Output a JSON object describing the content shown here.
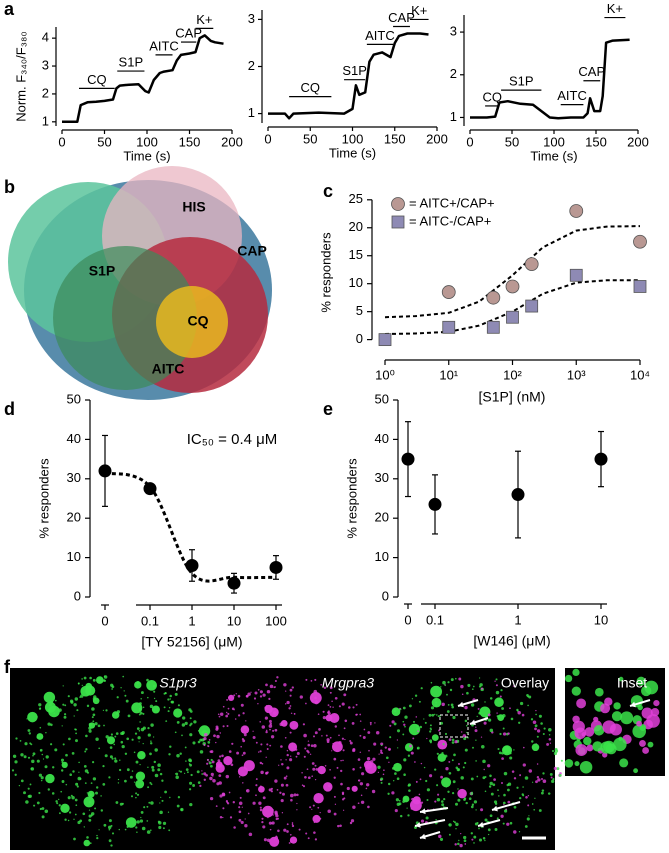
{
  "panel_labels": [
    "a",
    "b",
    "c",
    "d",
    "e",
    "f"
  ],
  "chart_data": [
    {
      "type": "line",
      "y_label": "Norm. F₃₄₀/F₃₈₀",
      "x_label": "Time (s)",
      "color": "#000000",
      "xlim": [
        0,
        200
      ],
      "xticks": [
        0,
        50,
        100,
        150,
        200
      ],
      "ylim": [
        0.85,
        4.4
      ],
      "yticks": [
        1,
        2,
        3,
        4
      ],
      "x": [
        0,
        10,
        18,
        22,
        30,
        40,
        50,
        60,
        64,
        68,
        75,
        90,
        98,
        102,
        108,
        115,
        120,
        130,
        135,
        140,
        150,
        157,
        162,
        168,
        175,
        180,
        190
      ],
      "values": [
        1,
        1,
        1,
        1.6,
        1.7,
        1.72,
        1.75,
        1.8,
        2.2,
        2.3,
        2.32,
        2.35,
        2.1,
        2.05,
        2.5,
        2.75,
        2.8,
        2.85,
        3.2,
        3.4,
        3.45,
        3.5,
        4.0,
        4.1,
        3.9,
        3.85,
        3.8
      ],
      "annotations": [
        {
          "label": "CQ",
          "x": [
            20,
            62
          ],
          "y": 2.2
        },
        {
          "label": "S1P",
          "x": [
            65,
            97
          ],
          "y": 2.82
        },
        {
          "label": "AITC",
          "x": [
            110,
            130
          ],
          "y": 3.4
        },
        {
          "label": "CAP",
          "x": [
            140,
            158
          ],
          "y": 3.86
        },
        {
          "label": "K+",
          "x": [
            157,
            178
          ],
          "y": 4.35
        }
      ]
    },
    {
      "type": "line",
      "x_label": "Time (s)",
      "color": "#000000",
      "xlim": [
        0,
        200
      ],
      "xticks": [
        0,
        50,
        100,
        150,
        200
      ],
      "ylim": [
        0.8,
        3.2
      ],
      "yticks": [
        1,
        2,
        3
      ],
      "x": [
        0,
        20,
        25,
        30,
        60,
        90,
        100,
        104,
        108,
        115,
        120,
        125,
        135,
        145,
        150,
        155,
        165,
        180,
        190
      ],
      "values": [
        1,
        1,
        0.9,
        1.0,
        1.02,
        1.0,
        1.1,
        1.6,
        1.4,
        1.45,
        2.1,
        2.25,
        2.3,
        2.2,
        2.5,
        2.65,
        2.7,
        2.7,
        2.68
      ],
      "annotations": [
        {
          "label": "CQ",
          "x": [
            25,
            75
          ],
          "y": 1.36
        },
        {
          "label": "S1P",
          "x": [
            90,
            115
          ],
          "y": 1.72
        },
        {
          "label": "AITC",
          "x": [
            117,
            148
          ],
          "y": 2.47
        },
        {
          "label": "CAP",
          "x": [
            148,
            168
          ],
          "y": 2.85
        },
        {
          "label": "K+",
          "x": [
            168,
            190
          ],
          "y": 3.0
        }
      ]
    },
    {
      "type": "line",
      "x_label": "Time (s)",
      "color": "#000000",
      "xlim": [
        0,
        200
      ],
      "xticks": [
        0,
        50,
        100,
        150,
        200
      ],
      "ylim": [
        0.8,
        3.4
      ],
      "yticks": [
        1,
        2,
        3
      ],
      "x": [
        0,
        20,
        30,
        35,
        45,
        60,
        75,
        85,
        95,
        105,
        120,
        135,
        140,
        143,
        148,
        155,
        158,
        162,
        170,
        190
      ],
      "values": [
        1,
        1,
        1.02,
        1.35,
        1.38,
        1.32,
        1.3,
        1.15,
        1.0,
        0.98,
        1.0,
        1.0,
        1.1,
        1.45,
        1.15,
        1.15,
        1.5,
        2.75,
        2.8,
        2.82
      ],
      "annotations": [
        {
          "label": "CQ",
          "x": [
            18,
            35
          ],
          "y": 1.27
        },
        {
          "label": "S1P",
          "x": [
            37,
            85
          ],
          "y": 1.64
        },
        {
          "label": "AITC",
          "x": [
            108,
            135
          ],
          "y": 1.3
        },
        {
          "label": "CAP",
          "x": [
            135,
            155
          ],
          "y": 1.86
        },
        {
          "label": "K+",
          "x": [
            160,
            185
          ],
          "y": 3.34
        }
      ]
    },
    {
      "type": "scatter",
      "x_label": "[S1P] (nM)",
      "y_label": "% responders",
      "xlog": true,
      "xlim": [
        1,
        10000
      ],
      "xticks": [
        {
          "value": 1,
          "label": "10⁰"
        },
        {
          "value": 10,
          "label": "10¹"
        },
        {
          "value": 100,
          "label": "10²"
        },
        {
          "value": 1000,
          "label": "10³"
        },
        {
          "value": 10000,
          "label": "10⁴"
        }
      ],
      "ylim": [
        -1.5,
        25.5
      ],
      "yticks": [
        0,
        5,
        10,
        15,
        20,
        25
      ],
      "series": [
        {
          "name": "= AITC+/CAP+",
          "color": "#b99893",
          "marker": "circle",
          "x": [
            10,
            50,
            100,
            200,
            1000,
            10000
          ],
          "values": [
            8.5,
            7.5,
            9.5,
            13.5,
            23,
            17.5
          ],
          "fit": {
            "x": [
              1,
              3,
              10,
              30,
              100,
              300,
              1000,
              3000,
              10000
            ],
            "values": [
              4,
              4.2,
              4.8,
              6.8,
              11.5,
              16.5,
              19.5,
              20.2,
              20.3
            ]
          }
        },
        {
          "name": "= AITC-/CAP+",
          "color": "#8e8ab4",
          "marker": "square",
          "x": [
            1,
            10,
            50,
            100,
            200,
            1000,
            10000
          ],
          "values": [
            0,
            2.2,
            2.2,
            4,
            6,
            11.5,
            9.5
          ],
          "fit": {
            "x": [
              1,
              3,
              10,
              30,
              100,
              300,
              1000,
              3000,
              10000
            ],
            "values": [
              1,
              1.1,
              1.4,
              2.5,
              5,
              8.2,
              10.2,
              10.6,
              10.6
            ]
          }
        }
      ]
    },
    {
      "type": "scatter",
      "x_label": "[TY 52156] (μM)",
      "y_label": "% responders",
      "annotation": "IC₅₀ = 0.4 μM",
      "categories": [
        "0",
        "0.1",
        "1",
        "10",
        "100"
      ],
      "values": [
        32,
        27.5,
        8,
        3.5,
        7.5
      ],
      "errors": [
        9,
        1,
        4,
        2.5,
        3
      ],
      "fit": [
        31.5,
        28,
        6,
        5,
        5
      ],
      "color": "#000000",
      "ylim": [
        0,
        50
      ],
      "yticks": [
        0,
        10,
        20,
        30,
        40,
        50
      ]
    },
    {
      "type": "scatter",
      "x_label": "[W146] (μM)",
      "y_label": "% responders",
      "categories": [
        "0",
        "0.1",
        "1",
        "10"
      ],
      "values": [
        35,
        23.5,
        26,
        35
      ],
      "errors": [
        9.5,
        7.5,
        11,
        7
      ],
      "color": "#000000",
      "ylim": [
        0,
        50
      ],
      "yticks": [
        0,
        10,
        20,
        30,
        40,
        50
      ]
    }
  ],
  "venn": {
    "labels": [
      "HIS",
      "CAP",
      "S1P",
      "CQ",
      "AITC"
    ]
  },
  "images": {
    "labels": [
      "S1pr3",
      "Mrgpra3",
      "Overlay",
      "Inset"
    ]
  }
}
